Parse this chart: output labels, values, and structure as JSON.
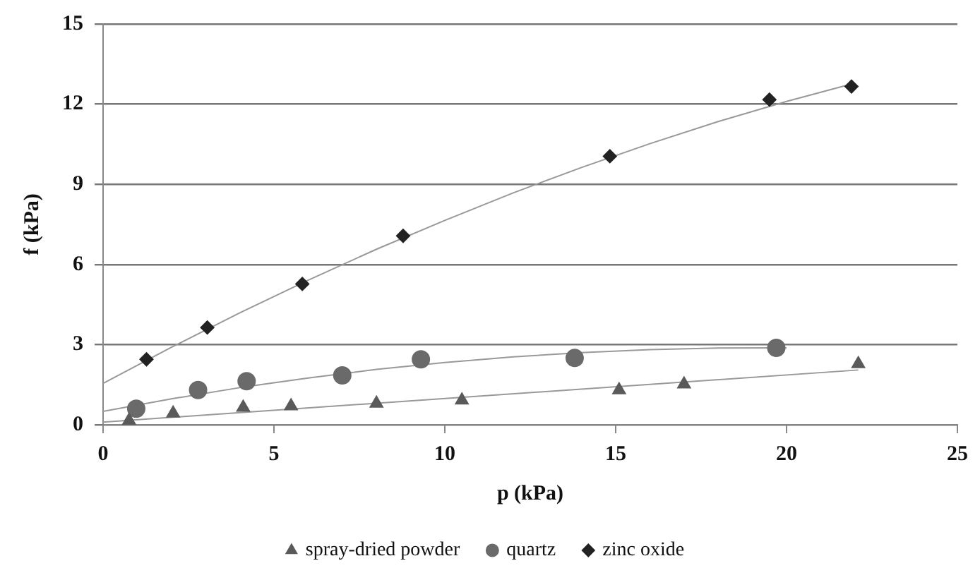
{
  "chart_data": {
    "type": "scatter",
    "xlabel": "p (kPa)",
    "ylabel": "f (kPa)",
    "xlim": [
      0,
      25
    ],
    "xticks": [
      0,
      5,
      10,
      15,
      20,
      25
    ],
    "ylim": [
      0,
      15
    ],
    "yticks": [
      0,
      3,
      6,
      9,
      12,
      15
    ],
    "grid": "y",
    "legend": "bottom",
    "series": [
      {
        "name": "spray-dried powder",
        "color": "#5a5a5a",
        "marker": "triangle",
        "x": [
          0.76,
          2.05,
          4.1,
          5.5,
          8.0,
          10.5,
          15.1,
          17.0,
          22.1
        ],
        "values": [
          0.16,
          0.43,
          0.65,
          0.7,
          0.8,
          0.92,
          1.3,
          1.52,
          2.28
        ]
      },
      {
        "name": "quartz",
        "color": "#6a6a6a",
        "marker": "circle",
        "x": [
          0.97,
          2.78,
          4.2,
          7.0,
          9.3,
          13.8,
          19.7
        ],
        "values": [
          0.6,
          1.3,
          1.63,
          1.85,
          2.45,
          2.5,
          2.88
        ]
      },
      {
        "name": "zinc oxide",
        "color": "#222222",
        "marker": "diamond",
        "x": [
          1.27,
          3.05,
          5.83,
          8.78,
          14.83,
          19.5,
          21.9
        ],
        "values": [
          2.45,
          3.64,
          5.27,
          7.07,
          10.05,
          12.17,
          12.66
        ]
      },
      {
        "type": "line",
        "color": "#999999",
        "marker": "none",
        "x": [
          0,
          22.1
        ],
        "values": [
          0.1,
          2.05
        ]
      },
      {
        "type": "line",
        "color": "#999999",
        "marker": "none",
        "x": [
          0,
          2,
          4,
          6,
          8,
          10,
          12,
          14,
          16,
          18,
          20
        ],
        "values": [
          0.5,
          0.97,
          1.39,
          1.75,
          2.07,
          2.33,
          2.54,
          2.7,
          2.81,
          2.87,
          2.88
        ]
      },
      {
        "type": "line",
        "color": "#999999",
        "marker": "none",
        "x": [
          0,
          2,
          4,
          6,
          8,
          10,
          12,
          14,
          16,
          18,
          20,
          22
        ],
        "values": [
          1.55,
          2.9,
          4.19,
          5.41,
          6.57,
          7.65,
          8.68,
          9.63,
          10.52,
          11.35,
          12.1,
          12.79
        ]
      }
    ]
  }
}
